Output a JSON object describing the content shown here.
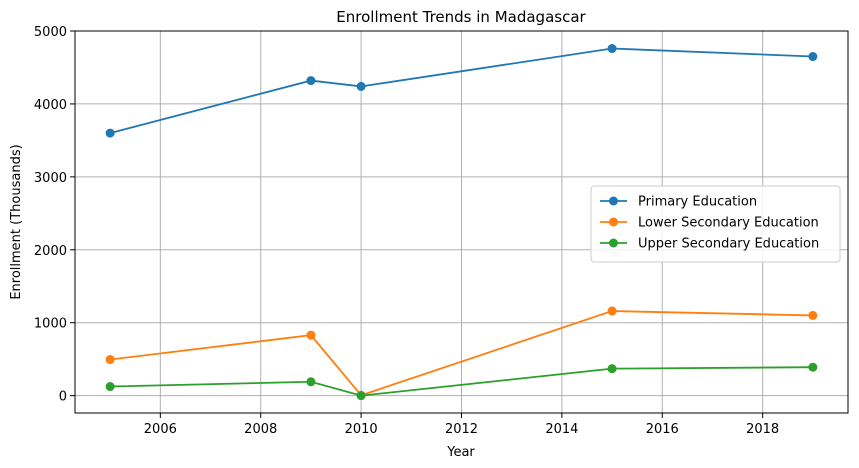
{
  "chart_data": {
    "type": "line",
    "title": "Enrollment Trends in Madagascar",
    "xlabel": "Year",
    "ylabel": "Enrollment (Thousands)",
    "x": [
      2005,
      2009,
      2010,
      2015,
      2019
    ],
    "xlim": [
      2004.3,
      2019.7
    ],
    "ylim": [
      -238,
      5000
    ],
    "xticks": [
      2006,
      2008,
      2010,
      2012,
      2014,
      2016,
      2018
    ],
    "yticks": [
      0,
      1000,
      2000,
      3000,
      4000,
      5000
    ],
    "grid": true,
    "legend_position": "center-right",
    "series": [
      {
        "name": "Primary Education",
        "color": "#1f77b4",
        "values": [
          3600,
          4320,
          4240,
          4760,
          4650
        ]
      },
      {
        "name": "Lower Secondary Education",
        "color": "#ff7f0e",
        "values": [
          495,
          830,
          5,
          1160,
          1100
        ]
      },
      {
        "name": "Upper Secondary Education",
        "color": "#2ca02c",
        "values": [
          125,
          190,
          0,
          370,
          390
        ]
      }
    ]
  }
}
